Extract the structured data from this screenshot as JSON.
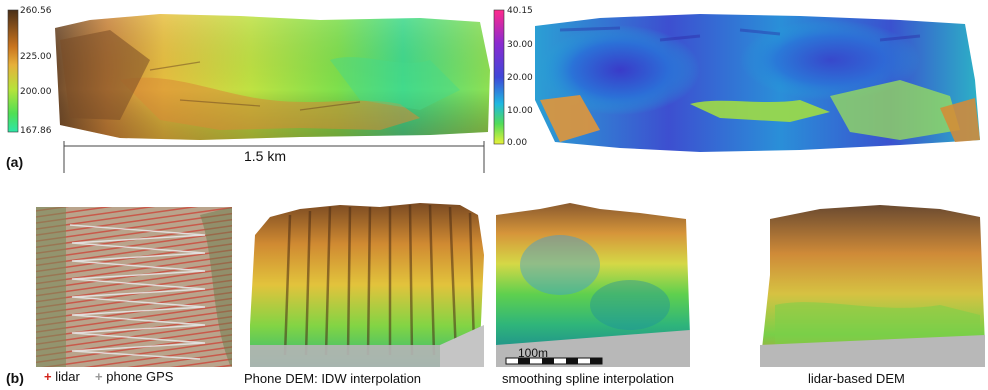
{
  "panel_a": {
    "label": "(a)",
    "elevation_scale": {
      "ticks": [
        "260.56",
        "225.00",
        "200.00",
        "167.86"
      ],
      "colors": [
        "#5a3a1e",
        "#d98c2a",
        "#e9e33a",
        "#63e04a",
        "#2fe0a0"
      ]
    },
    "height_scale": {
      "ticks": [
        "40.15",
        "30.00",
        "20.00",
        "10.00",
        "0.00"
      ],
      "colors": [
        "#ff2a8c",
        "#8a2bd0",
        "#3f47d8",
        "#20b8e0",
        "#5adf5a",
        "#e8f23a"
      ]
    },
    "distance_label": "1.5 km"
  },
  "panel_b": {
    "label": "(b)",
    "legend": [
      {
        "symbol": "+",
        "text": "lidar",
        "color": "#d4241c"
      },
      {
        "symbol": "+",
        "text": "phone GPS",
        "color": "#9a9a9a"
      }
    ],
    "captions": [
      "Phone DEM: IDW interpolation",
      "smoothing spline interpolation",
      "lidar-based DEM"
    ],
    "scale_bar_label": "100m"
  }
}
